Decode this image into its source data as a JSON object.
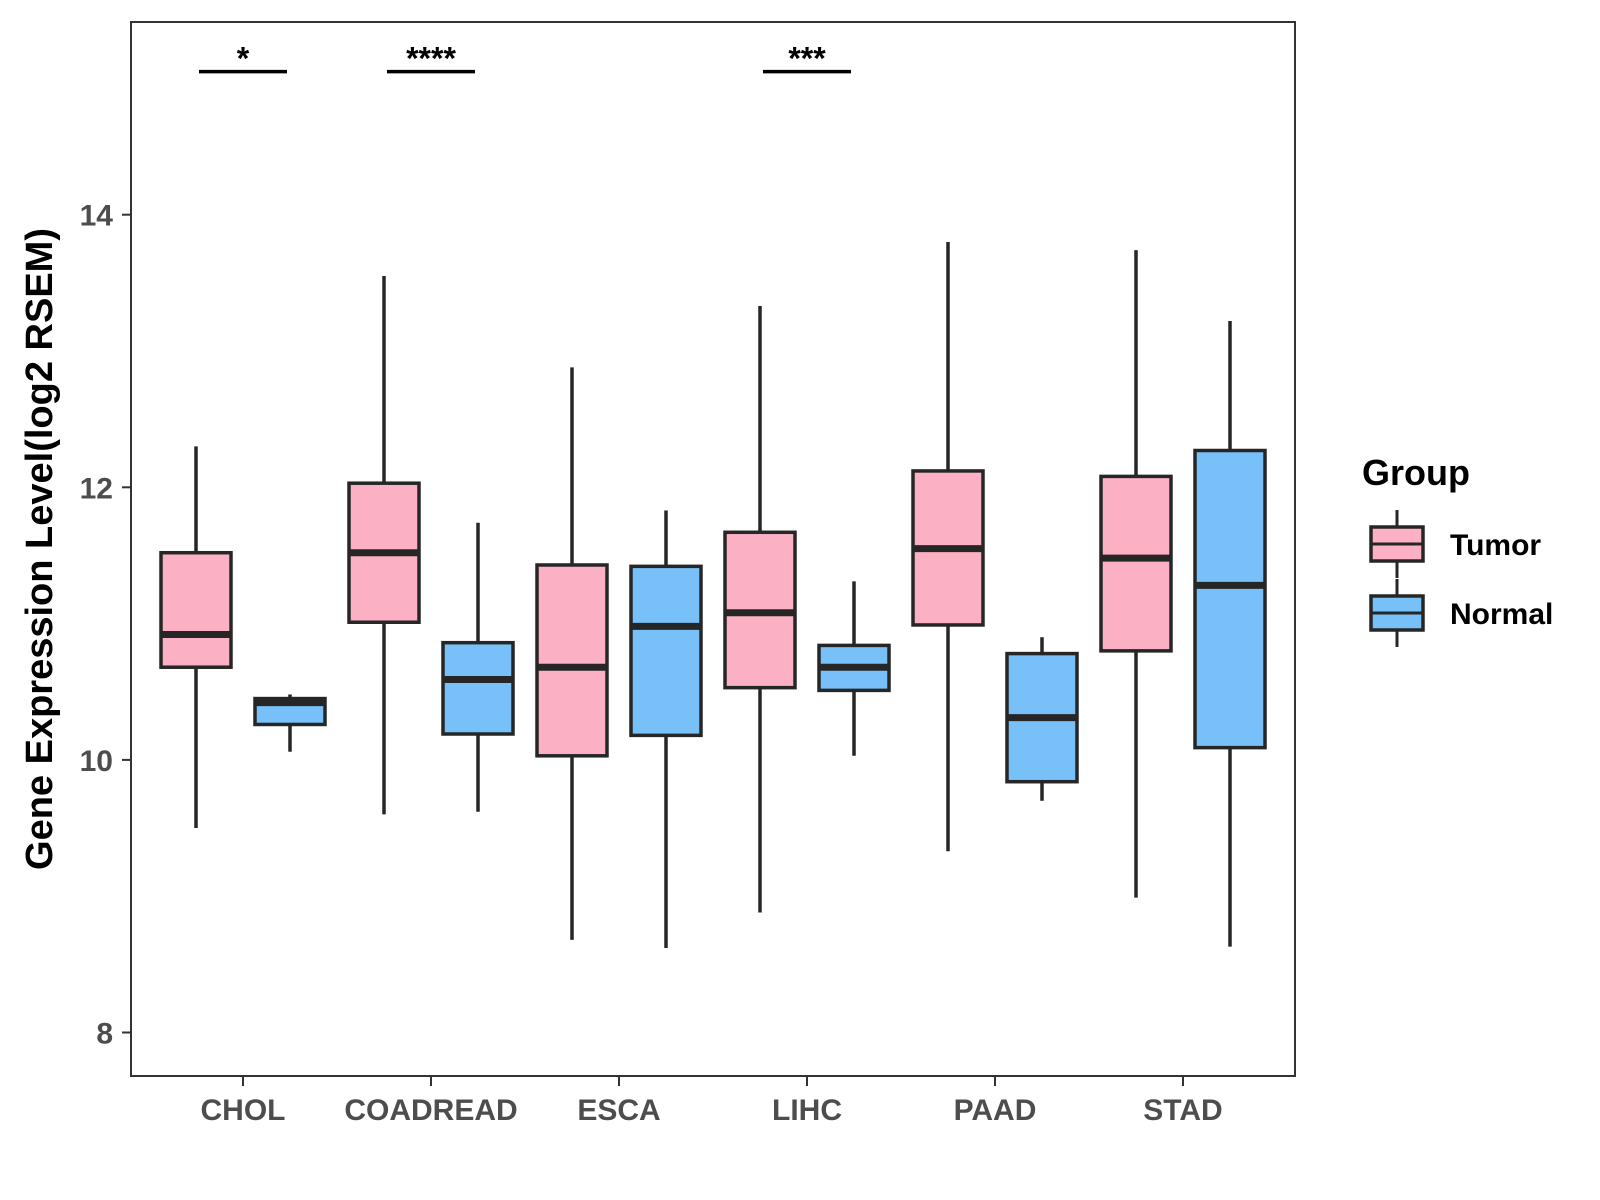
{
  "chart_data": {
    "type": "boxplot",
    "title": "",
    "xlabel": "",
    "ylabel": "Gene Expression Level(log2 RSEM)",
    "ylim": [
      7.7,
      15.5
    ],
    "yticks": [
      8,
      10,
      12,
      14
    ],
    "categories": [
      "CHOL",
      "COADREAD",
      "ESCA",
      "LIHC",
      "PAAD",
      "STAD"
    ],
    "legend": {
      "title": "Group",
      "position": "right",
      "entries": [
        {
          "name": "Tumor",
          "color": "#fbb1c3"
        },
        {
          "name": "Normal",
          "color": "#77c1f8"
        }
      ]
    },
    "series": [
      {
        "name": "Tumor",
        "color": "#fbb1c3",
        "boxes": [
          {
            "category": "CHOL",
            "min": 9.5,
            "q1": 10.68,
            "median": 10.92,
            "q3": 11.52,
            "max": 12.3
          },
          {
            "category": "COADREAD",
            "min": 9.6,
            "q1": 11.01,
            "median": 11.52,
            "q3": 12.03,
            "max": 13.55
          },
          {
            "category": "ESCA",
            "min": 8.68,
            "q1": 10.03,
            "median": 10.68,
            "q3": 11.43,
            "max": 12.88
          },
          {
            "category": "LIHC",
            "min": 8.88,
            "q1": 10.53,
            "median": 11.08,
            "q3": 11.67,
            "max": 13.33
          },
          {
            "category": "PAAD",
            "min": 9.33,
            "q1": 10.99,
            "median": 11.55,
            "q3": 12.12,
            "max": 13.8
          },
          {
            "category": "STAD",
            "min": 8.99,
            "q1": 10.8,
            "median": 11.48,
            "q3": 12.08,
            "max": 13.74
          }
        ]
      },
      {
        "name": "Normal",
        "color": "#77c1f8",
        "boxes": [
          {
            "category": "CHOL",
            "min": 10.06,
            "q1": 10.26,
            "median": 10.42,
            "q3": 10.45,
            "max": 10.48
          },
          {
            "category": "COADREAD",
            "min": 9.62,
            "q1": 10.19,
            "median": 10.59,
            "q3": 10.86,
            "max": 11.74
          },
          {
            "category": "ESCA",
            "min": 8.62,
            "q1": 10.18,
            "median": 10.98,
            "q3": 11.42,
            "max": 11.83
          },
          {
            "category": "LIHC",
            "min": 10.03,
            "q1": 10.51,
            "median": 10.68,
            "q3": 10.84,
            "max": 11.31
          },
          {
            "category": "PAAD",
            "min": 9.7,
            "q1": 9.84,
            "median": 10.31,
            "q3": 10.78,
            "max": 10.9
          },
          {
            "category": "STAD",
            "min": 8.63,
            "q1": 10.09,
            "median": 11.28,
            "q3": 12.27,
            "max": 13.22
          }
        ]
      }
    ],
    "significance": [
      {
        "category": "CHOL",
        "label": "*",
        "y": 15.05
      },
      {
        "category": "COADREAD",
        "label": "****",
        "y": 15.05
      },
      {
        "category": "LIHC",
        "label": "***",
        "y": 15.05
      }
    ]
  }
}
